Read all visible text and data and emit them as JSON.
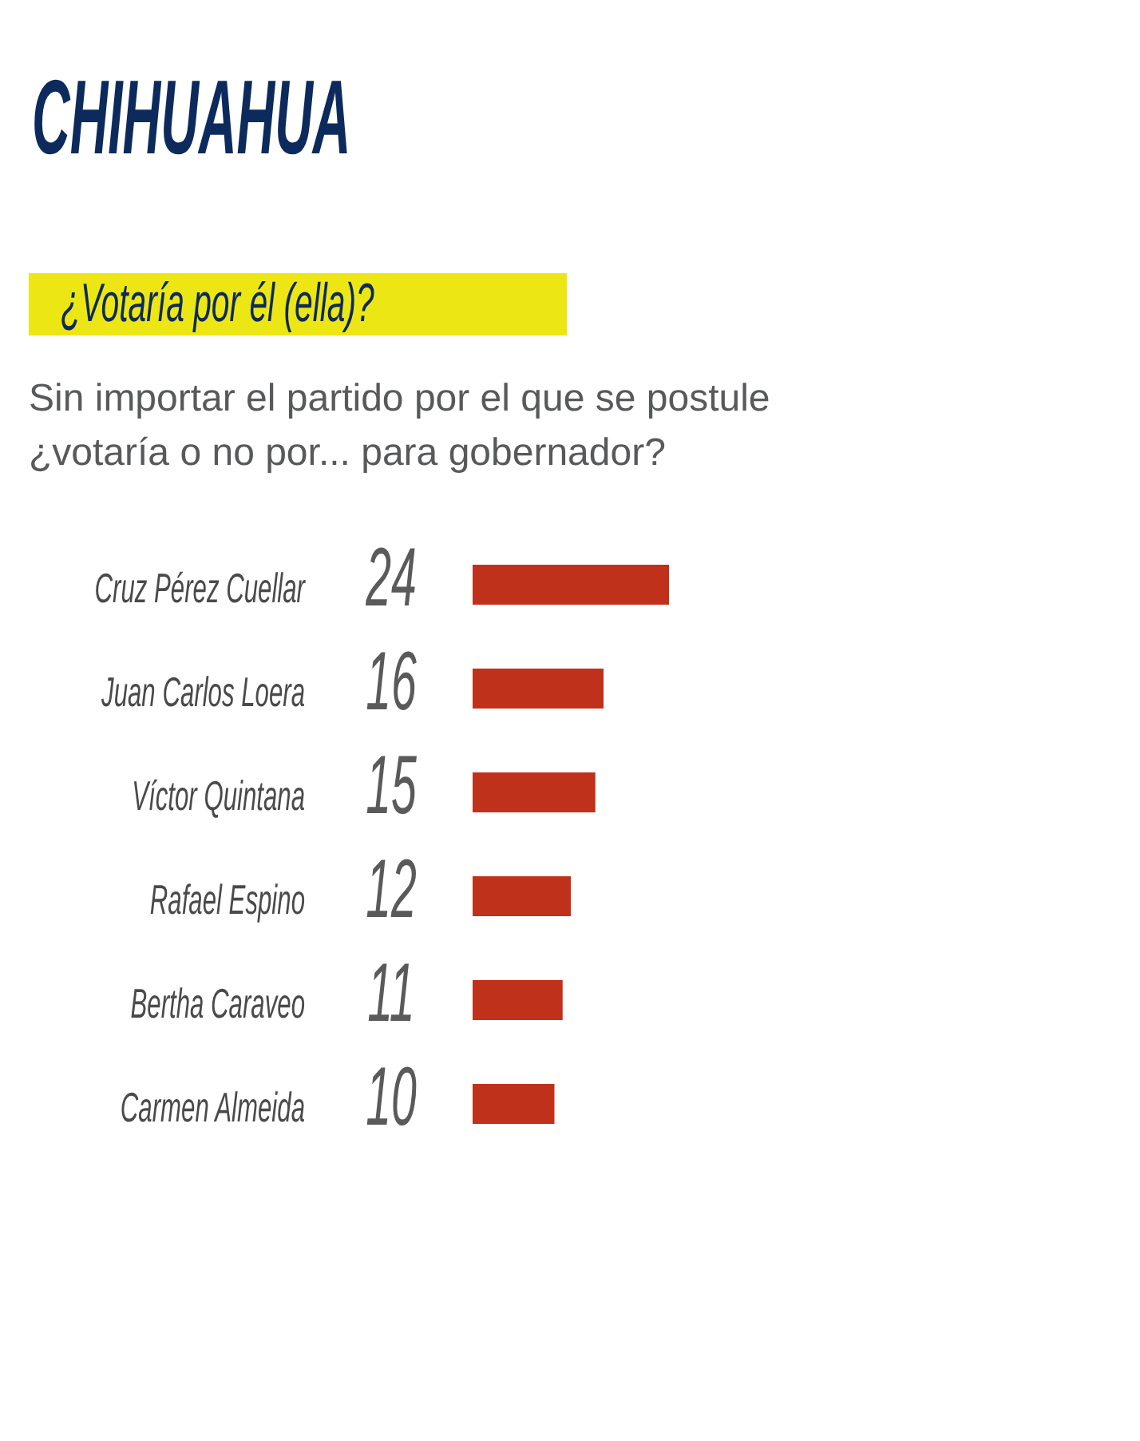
{
  "chart_data": {
    "type": "bar",
    "orientation": "horizontal",
    "title": "CHIHUAHUA",
    "subtitle": "¿Votaría por él (ella)?",
    "annotations": [
      "Sin importar el partido por el que se postule\n¿votaría o no por... para gobernador?"
    ],
    "categories": [
      "Cruz Pérez Cuellar",
      "Juan Carlos Loera",
      "Víctor Quintana",
      "Rafael Espino",
      "Bertha Caraveo",
      "Carmen Almeida"
    ],
    "values": [
      24,
      16,
      15,
      12,
      11,
      10
    ],
    "color": "#c0311c",
    "data_labels": true
  }
}
